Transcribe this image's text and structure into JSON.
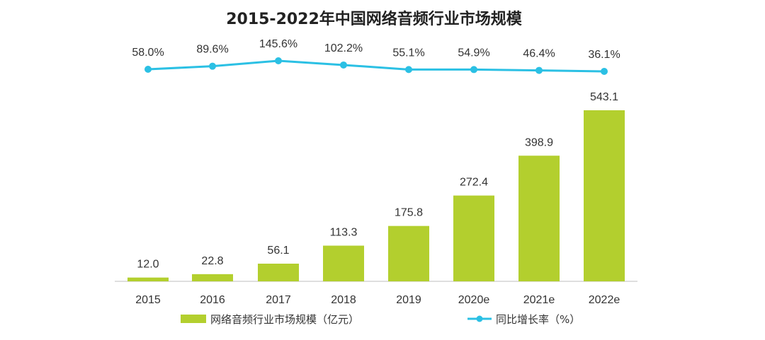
{
  "chart_data": {
    "type": "bar",
    "title": "2015-2022年中国网络音频行业市场规模",
    "categories": [
      "2015",
      "2016",
      "2017",
      "2018",
      "2019",
      "2020e",
      "2021e",
      "2022e"
    ],
    "series": [
      {
        "name": "网络音频行业市场规模（亿元）",
        "kind": "bar",
        "color": "#b3cf2e",
        "values": [
          12.0,
          22.8,
          56.1,
          113.3,
          175.8,
          272.4,
          398.9,
          543.1
        ],
        "labels": [
          "12.0",
          "22.8",
          "56.1",
          "113.3",
          "175.8",
          "272.4",
          "398.9",
          "543.1"
        ]
      },
      {
        "name": "同比增长率（%）",
        "kind": "line",
        "color": "#2bc0e4",
        "values": [
          58.0,
          89.6,
          145.6,
          102.2,
          55.1,
          54.9,
          46.4,
          36.1
        ],
        "labels": [
          "58.0%",
          "89.6%",
          "145.6%",
          "102.2%",
          "55.1%",
          "54.9%",
          "46.4%",
          "36.1%"
        ]
      }
    ],
    "bar_ylim": [
      0,
      543.1
    ],
    "line_ylim": [
      36.1,
      145.6
    ],
    "xlabel": "",
    "ylabel": "",
    "grid": false,
    "legend_position": "bottom"
  },
  "legend": {
    "bar_label": "网络音频行业市场规模（亿元）",
    "line_label": "同比增长率（%）"
  }
}
